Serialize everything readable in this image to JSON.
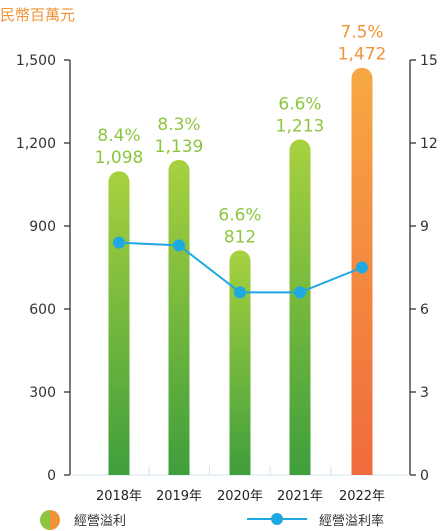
{
  "unit_label": "民幣百萬元",
  "chart_data": {
    "type": "bar",
    "categories": [
      "2018年",
      "2019年",
      "2020年",
      "2021年",
      "2022年"
    ],
    "series": [
      {
        "name": "經營溢利",
        "values": [
          1098,
          1139,
          812,
          1213,
          1472
        ],
        "labels": [
          "1,098",
          "1,139",
          "812",
          "1,213",
          "1,472"
        ]
      },
      {
        "name": "經營溢利率",
        "values": [
          8.4,
          8.3,
          6.6,
          6.6,
          7.5
        ],
        "labels": [
          "8.4%",
          "8.3%",
          "6.6%",
          "6.6%",
          "7.5%"
        ],
        "axis": "right",
        "type": "line"
      }
    ],
    "y_left": {
      "range": [
        0,
        1500
      ],
      "ticks": [
        "0",
        "300",
        "600",
        "900",
        "1,200",
        "1,500"
      ]
    },
    "y_right": {
      "range": [
        0,
        15
      ],
      "ticks": [
        "0",
        "3",
        "6",
        "9",
        "12",
        "15"
      ]
    },
    "colors": {
      "bar_gradient": [
        "#a8d13f",
        "#3f9e3c"
      ],
      "highlight_gradient": [
        "#f7a844",
        "#ef6b3c"
      ],
      "line": "#1ea9e1",
      "label_green": "#8cc63f",
      "label_orange": "#f19437"
    }
  }
}
